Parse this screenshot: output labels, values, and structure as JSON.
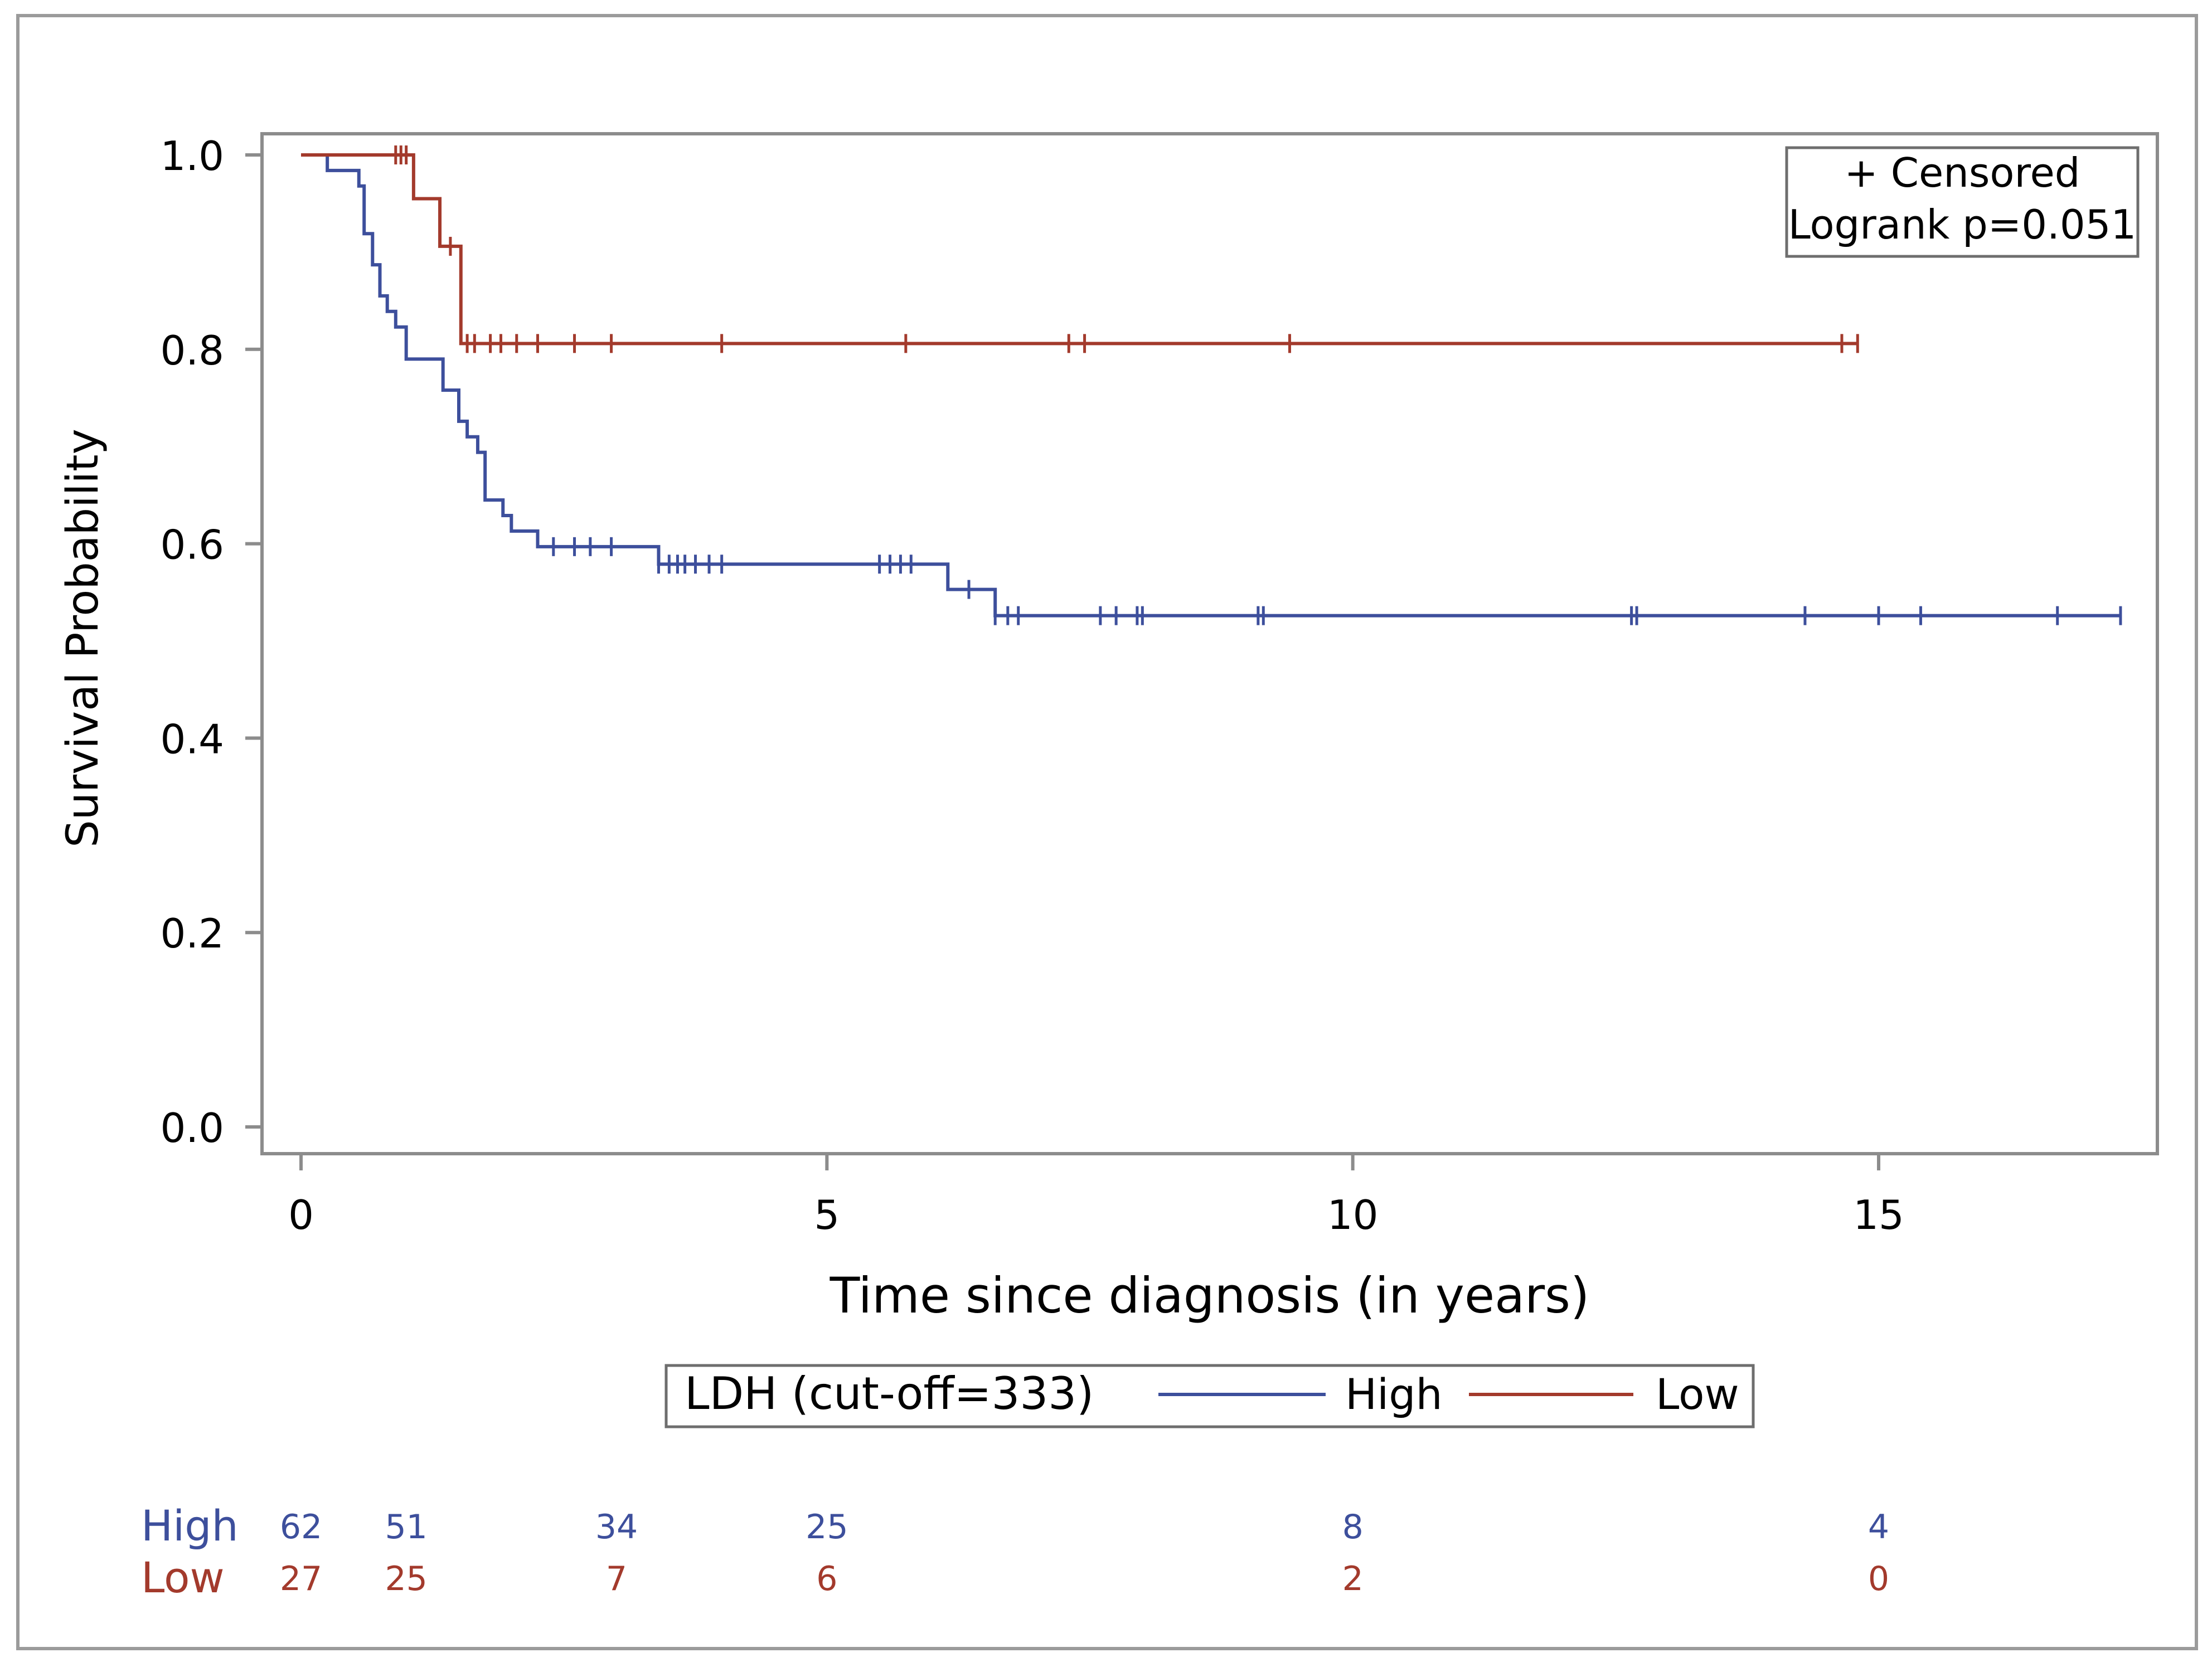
{
  "chart_data": {
    "type": "line",
    "subtype": "kaplan-meier",
    "title": "",
    "xlabel": "Time since diagnosis (in years)",
    "ylabel": "Survival Probability",
    "xlim": [
      0,
      17.5
    ],
    "ylim": [
      0,
      1.0
    ],
    "xticks": [
      0,
      5,
      10,
      15
    ],
    "xtick_labels": [
      "0",
      "5",
      "10",
      "15"
    ],
    "yticks": [
      0.0,
      0.2,
      0.4,
      0.6,
      0.8,
      1.0
    ],
    "ytick_labels": [
      "0.0",
      "0.2",
      "0.4",
      "0.6",
      "0.8",
      "1.0"
    ],
    "grid": false,
    "inset": {
      "censored_label": "+ Censored",
      "logrank_label": "Logrank p=0.051",
      "placement": "top-right"
    },
    "legend": {
      "title": "LDH (cut-off=333)",
      "placement": "bottom",
      "entries": [
        "High",
        "Low"
      ]
    },
    "series": [
      {
        "name": "High",
        "color": "#3d4f9c",
        "steps": [
          [
            0,
            1.0
          ],
          [
            0.25,
            0.984
          ],
          [
            0.55,
            0.968
          ],
          [
            0.6,
            0.919
          ],
          [
            0.68,
            0.887
          ],
          [
            0.75,
            0.855
          ],
          [
            0.82,
            0.839
          ],
          [
            0.9,
            0.823
          ],
          [
            1.0,
            0.79
          ],
          [
            1.35,
            0.758
          ],
          [
            1.5,
            0.726
          ],
          [
            1.58,
            0.71
          ],
          [
            1.68,
            0.694
          ],
          [
            1.75,
            0.645
          ],
          [
            1.92,
            0.629
          ],
          [
            2.0,
            0.613
          ],
          [
            2.25,
            0.597
          ],
          [
            3.4,
            0.579
          ],
          [
            6.15,
            0.553
          ],
          [
            6.6,
            0.526
          ]
        ],
        "end_x": 17.3,
        "censored": [
          2.4,
          2.6,
          2.75,
          2.95,
          3.4,
          3.5,
          3.58,
          3.65,
          3.75,
          3.88,
          4.0,
          5.5,
          5.6,
          5.7,
          5.8,
          6.35,
          6.6,
          6.72,
          6.82,
          7.6,
          7.75,
          7.95,
          8.0,
          9.1,
          9.15,
          12.65,
          12.7,
          14.3,
          15.0,
          15.4,
          16.7,
          17.3
        ]
      },
      {
        "name": "Low",
        "color": "#a33a2c",
        "steps": [
          [
            0,
            1.0
          ],
          [
            1.07,
            0.955
          ],
          [
            1.32,
            0.906
          ],
          [
            1.52,
            0.806
          ]
        ],
        "end_x": 14.8,
        "censored": [
          0.9,
          0.95,
          1.0,
          1.42,
          1.58,
          1.65,
          1.8,
          1.9,
          2.05,
          2.25,
          2.6,
          2.95,
          4.0,
          5.75,
          7.3,
          7.45,
          9.4,
          14.65,
          14.8
        ]
      }
    ],
    "risk_table": {
      "times": [
        0,
        1,
        3,
        5,
        10,
        15
      ],
      "rows": [
        {
          "name": "High",
          "color": "#3d4f9c",
          "counts": [
            "62",
            "51",
            "34",
            "25",
            "8",
            "4"
          ]
        },
        {
          "name": "Low",
          "color": "#a33a2c",
          "counts": [
            "27",
            "25",
            "7",
            "6",
            "2",
            "0"
          ]
        }
      ]
    }
  }
}
